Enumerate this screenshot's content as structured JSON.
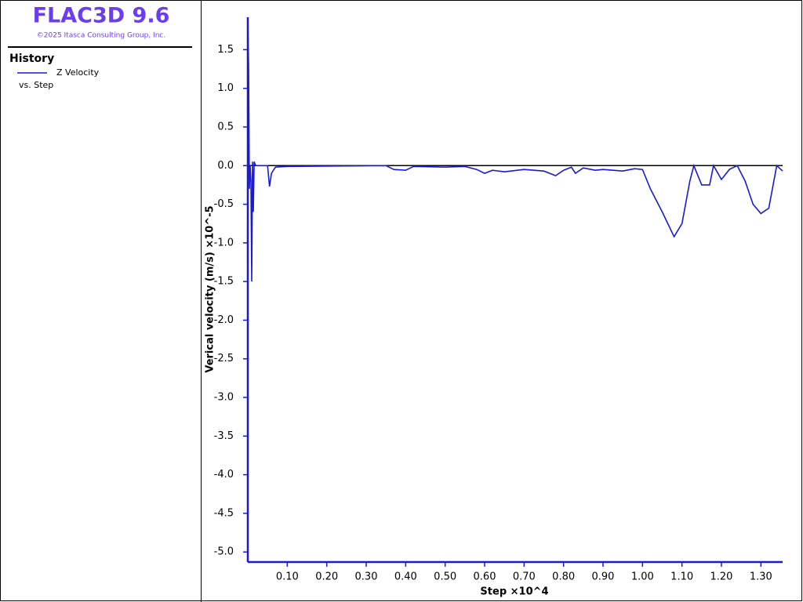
{
  "header": {
    "app": "FLAC3D 9.6",
    "copyright": "©2025 Itasca Consulting Group, Inc.",
    "panel": "History",
    "versus": "vs. Step"
  },
  "chart_data": {
    "type": "line",
    "xlabel": "Step ×10^4",
    "ylabel": "Verical velocity (m/s) ×10^-5",
    "x": [
      0,
      0.002,
      0.004,
      0.006,
      0.008,
      0.01,
      0.012,
      0.014,
      0.016,
      0.02,
      0.05,
      0.055,
      0.06,
      0.07,
      0.1,
      0.35,
      0.37,
      0.4,
      0.42,
      0.5,
      0.55,
      0.58,
      0.6,
      0.62,
      0.65,
      0.7,
      0.75,
      0.78,
      0.8,
      0.82,
      0.83,
      0.85,
      0.88,
      0.9,
      0.95,
      0.98,
      1.0,
      1.02,
      1.05,
      1.08,
      1.1,
      1.12,
      1.13,
      1.15,
      1.17,
      1.18,
      1.2,
      1.22,
      1.24,
      1.26,
      1.28,
      1.3,
      1.32,
      1.34,
      1.355
    ],
    "series": [
      {
        "name": "Z Velocity",
        "color": "#1a1ad6",
        "values": [
          1.9,
          1.3,
          -0.3,
          0.0,
          -0.2,
          -1.5,
          0.05,
          -0.6,
          0.05,
          0.0,
          0.0,
          -0.27,
          -0.1,
          -0.02,
          -0.01,
          0.0,
          -0.05,
          -0.06,
          -0.01,
          -0.02,
          -0.01,
          -0.05,
          -0.1,
          -0.06,
          -0.08,
          -0.05,
          -0.07,
          -0.13,
          -0.06,
          -0.02,
          -0.1,
          -0.03,
          -0.06,
          -0.05,
          -0.07,
          -0.04,
          -0.05,
          -0.3,
          -0.6,
          -0.92,
          -0.75,
          -0.2,
          0.0,
          -0.25,
          -0.25,
          0.0,
          -0.18,
          -0.05,
          0.0,
          -0.2,
          -0.5,
          -0.62,
          -0.55,
          0.0,
          -0.07
        ]
      }
    ],
    "xlim": [
      0,
      1.355
    ],
    "ylim": [
      -5.13,
      1.92
    ],
    "xticks": [
      {
        "value": 0.1,
        "label": "0.10"
      },
      {
        "value": 0.2,
        "label": "0.20"
      },
      {
        "value": 0.3,
        "label": "0.30"
      },
      {
        "value": 0.4,
        "label": "0.40"
      },
      {
        "value": 0.5,
        "label": "0.50"
      },
      {
        "value": 0.6,
        "label": "0.60"
      },
      {
        "value": 0.7,
        "label": "0.70"
      },
      {
        "value": 0.8,
        "label": "0.80"
      },
      {
        "value": 0.9,
        "label": "0.90"
      },
      {
        "value": 1.0,
        "label": "1.00"
      },
      {
        "value": 1.1,
        "label": "1.10"
      },
      {
        "value": 1.2,
        "label": "1.20"
      },
      {
        "value": 1.3,
        "label": "1.30"
      }
    ],
    "yticks": [
      1.5,
      {
        "value": 1.0,
        "label": "1.0"
      },
      0.5,
      {
        "value": 0,
        "label": "0.0"
      },
      -0.5,
      {
        "value": -1.0,
        "label": "-1.0"
      },
      -1.5,
      {
        "value": -2.0,
        "label": "-2.0"
      },
      -2.5,
      {
        "value": -3.0,
        "label": "-3.0"
      },
      -3.5,
      {
        "value": -4.0,
        "label": "-4.0"
      },
      -4.5,
      {
        "value": -5.0,
        "label": "-5.0"
      }
    ],
    "grid": false
  }
}
